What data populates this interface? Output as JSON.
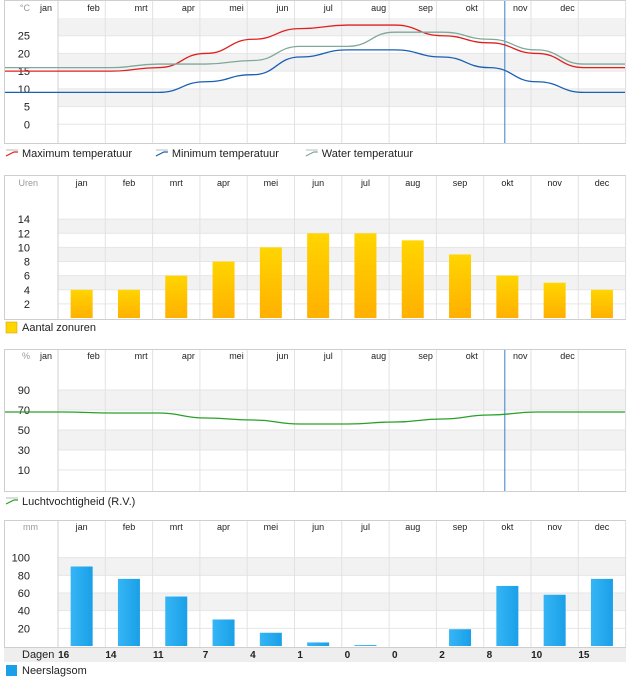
{
  "months": [
    "jan",
    "feb",
    "mrt",
    "apr",
    "mei",
    "jun",
    "jul",
    "aug",
    "sep",
    "okt",
    "nov",
    "dec"
  ],
  "colors": {
    "max_temp": "#e02020",
    "min_temp": "#1a5fb4",
    "water_temp": "#7fa898",
    "sun_top": "#ffd500",
    "sun_bottom": "#ffb000",
    "humidity": "#27a127",
    "rain": "#1aa0e8",
    "current_marker": "#3a7fd0"
  },
  "chart_data": [
    {
      "type": "line",
      "unit": "°C",
      "categories": [
        "jan",
        "feb",
        "mrt",
        "apr",
        "mei",
        "jun",
        "jul",
        "aug",
        "sep",
        "okt",
        "nov",
        "dec"
      ],
      "yticks": [
        0,
        5,
        10,
        15,
        20,
        25
      ],
      "ylim": [
        -5,
        30
      ],
      "current_month_marker": 9.2,
      "series": [
        {
          "name": "Maximum temperatuur",
          "values": [
            15,
            15,
            16,
            20,
            24,
            27,
            28,
            28,
            25,
            23,
            20,
            16
          ],
          "color_key": "max_temp"
        },
        {
          "name": "Minimum temperatuur",
          "values": [
            9,
            9,
            9,
            12,
            14,
            19,
            21,
            21,
            19,
            16,
            12,
            9
          ],
          "color_key": "min_temp"
        },
        {
          "name": "Water temperatuur",
          "values": [
            16,
            16,
            17,
            17,
            18,
            22,
            22,
            26,
            26,
            24,
            21,
            17
          ],
          "color_key": "water_temp"
        }
      ]
    },
    {
      "type": "bar",
      "unit": "Uren",
      "categories": [
        "jan",
        "feb",
        "mrt",
        "apr",
        "mei",
        "jun",
        "jul",
        "aug",
        "sep",
        "okt",
        "nov",
        "dec"
      ],
      "yticks": [
        2,
        4,
        6,
        8,
        10,
        12,
        14
      ],
      "ylim": [
        0,
        17
      ],
      "series": [
        {
          "name": "Aantal zonuren",
          "values": [
            4,
            4,
            6,
            8,
            10,
            12,
            12,
            11,
            9,
            6,
            5,
            4
          ]
        }
      ]
    },
    {
      "type": "line",
      "unit": "%",
      "categories": [
        "jan",
        "feb",
        "mrt",
        "apr",
        "mei",
        "jun",
        "jul",
        "aug",
        "sep",
        "okt",
        "nov",
        "dec"
      ],
      "yticks": [
        10,
        30,
        50,
        70,
        90
      ],
      "ylim": [
        -10,
        110
      ],
      "current_month_marker": 9.2,
      "series": [
        {
          "name": "Luchtvochtigheid (R.V.)",
          "values": [
            68,
            67,
            67,
            62,
            60,
            56,
            56,
            58,
            61,
            65,
            68,
            68
          ]
        }
      ]
    },
    {
      "type": "bar",
      "unit": "mm",
      "categories": [
        "jan",
        "feb",
        "mrt",
        "apr",
        "mei",
        "jun",
        "jul",
        "aug",
        "sep",
        "okt",
        "nov",
        "dec"
      ],
      "yticks": [
        20,
        40,
        60,
        80,
        100
      ],
      "ylim": [
        0,
        120
      ],
      "series": [
        {
          "name": "Neerslagsom",
          "values": [
            90,
            76,
            56,
            30,
            15,
            4,
            1,
            0,
            19,
            68,
            58,
            76
          ]
        }
      ],
      "days_label": "Dagen",
      "days": [
        16,
        14,
        11,
        7,
        4,
        1,
        0,
        0,
        2,
        8,
        10,
        15
      ]
    }
  ]
}
